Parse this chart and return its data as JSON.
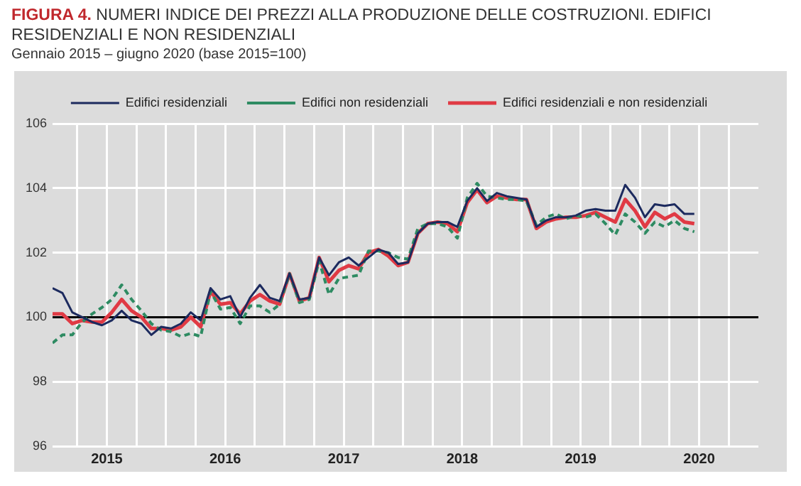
{
  "chart_data": {
    "type": "line",
    "title": "FIGURA 4. NUMERI INDICE DEI PREZZI ALLA PRODUZIONE DELLE COSTRUZIONI. EDIFICI RESIDENZIALI E NON RESIDENZIALI",
    "subtitle": "Gennaio 2015 – giugno 2020 (base 2015=100)",
    "x": [
      "2015-01",
      "2015-02",
      "2015-03",
      "2015-04",
      "2015-05",
      "2015-06",
      "2015-07",
      "2015-08",
      "2015-09",
      "2015-10",
      "2015-11",
      "2015-12",
      "2016-01",
      "2016-02",
      "2016-03",
      "2016-04",
      "2016-05",
      "2016-06",
      "2016-07",
      "2016-08",
      "2016-09",
      "2016-10",
      "2016-11",
      "2016-12",
      "2017-01",
      "2017-02",
      "2017-03",
      "2017-04",
      "2017-05",
      "2017-06",
      "2017-07",
      "2017-08",
      "2017-09",
      "2017-10",
      "2017-11",
      "2017-12",
      "2018-01",
      "2018-02",
      "2018-03",
      "2018-04",
      "2018-05",
      "2018-06",
      "2018-07",
      "2018-08",
      "2018-09",
      "2018-10",
      "2018-11",
      "2018-12",
      "2019-01",
      "2019-02",
      "2019-03",
      "2019-04",
      "2019-05",
      "2019-06",
      "2019-07",
      "2019-08",
      "2019-09",
      "2019-10",
      "2019-11",
      "2019-12",
      "2020-01",
      "2020-02",
      "2020-03",
      "2020-04",
      "2020-05",
      "2020-06"
    ],
    "series": [
      {
        "name": "Edifici residenziali",
        "color": "#1c2a5e",
        "line_style": "solid",
        "values": [
          100.9,
          100.75,
          100.15,
          100.0,
          99.85,
          99.75,
          99.9,
          100.2,
          99.9,
          99.8,
          99.45,
          99.7,
          99.65,
          99.8,
          100.15,
          99.9,
          100.9,
          100.55,
          100.65,
          100.0,
          100.6,
          101.0,
          100.6,
          100.5,
          101.35,
          100.55,
          100.6,
          101.85,
          101.3,
          101.7,
          101.85,
          101.6,
          101.85,
          102.1,
          102.0,
          101.65,
          101.7,
          102.6,
          102.9,
          102.95,
          102.95,
          102.8,
          103.6,
          104.0,
          103.6,
          103.85,
          103.75,
          103.7,
          103.65,
          102.8,
          103.0,
          103.1,
          103.1,
          103.15,
          103.3,
          103.35,
          103.3,
          103.3,
          104.1,
          103.7,
          103.1,
          103.5,
          103.45,
          103.5,
          103.2,
          103.2
        ]
      },
      {
        "name": "Edifici non residenziali",
        "color": "#2e8b62",
        "line_style": "dashed",
        "values": [
          99.2,
          99.45,
          99.45,
          99.85,
          100.1,
          100.3,
          100.55,
          101.0,
          100.55,
          100.2,
          99.8,
          99.6,
          99.55,
          99.4,
          99.5,
          99.4,
          100.8,
          100.25,
          100.3,
          99.8,
          100.35,
          100.35,
          100.15,
          100.4,
          101.35,
          100.45,
          100.55,
          101.75,
          100.7,
          101.2,
          101.25,
          101.3,
          102.05,
          102.05,
          102.0,
          101.85,
          101.8,
          102.75,
          102.9,
          102.9,
          102.8,
          102.45,
          103.7,
          104.15,
          103.75,
          103.7,
          103.65,
          103.65,
          103.6,
          102.85,
          103.1,
          103.2,
          103.05,
          103.15,
          103.1,
          103.2,
          102.9,
          102.55,
          103.2,
          102.95,
          102.6,
          102.95,
          102.8,
          103.0,
          102.75,
          102.65
        ]
      },
      {
        "name": "Edifici residenziali e non residenziali",
        "color": "#e03a44",
        "line_style": "solid",
        "values": [
          100.1,
          100.1,
          99.8,
          99.9,
          99.85,
          99.85,
          100.15,
          100.55,
          100.2,
          100.0,
          99.65,
          99.65,
          99.6,
          99.7,
          100.0,
          99.7,
          100.8,
          100.4,
          100.45,
          100.1,
          100.5,
          100.7,
          100.5,
          100.4,
          101.35,
          100.5,
          100.6,
          101.85,
          101.1,
          101.45,
          101.6,
          101.5,
          102.0,
          102.1,
          101.9,
          101.6,
          101.7,
          102.6,
          102.9,
          102.95,
          102.9,
          102.65,
          103.55,
          103.95,
          103.55,
          103.75,
          103.7,
          103.65,
          103.65,
          102.75,
          102.95,
          103.05,
          103.1,
          103.1,
          103.15,
          103.25,
          103.1,
          102.95,
          103.65,
          103.3,
          102.8,
          103.25,
          103.05,
          103.2,
          102.95,
          102.9
        ]
      }
    ],
    "xlim": [
      "2015-01",
      "2020-12-16"
    ],
    "xticks": [
      {
        "value": "2015-03-16",
        "label": null
      },
      {
        "value": "2015-06-16",
        "label": "2015"
      },
      {
        "value": "2015-09-16",
        "label": null
      },
      {
        "value": "2015-12-16",
        "label": null
      },
      {
        "value": "2016-03-16",
        "label": null
      },
      {
        "value": "2016-06-16",
        "label": "2016"
      },
      {
        "value": "2016-09-16",
        "label": null
      },
      {
        "value": "2016-12-16",
        "label": null
      },
      {
        "value": "2017-03-16",
        "label": null
      },
      {
        "value": "2017-06-16",
        "label": "2017"
      },
      {
        "value": "2017-09-16",
        "label": null
      },
      {
        "value": "2017-12-16",
        "label": null
      },
      {
        "value": "2018-03-16",
        "label": null
      },
      {
        "value": "2018-06-16",
        "label": "2018"
      },
      {
        "value": "2018-09-16",
        "label": null
      },
      {
        "value": "2018-12-16",
        "label": null
      },
      {
        "value": "2019-03-16",
        "label": null
      },
      {
        "value": "2019-06-16",
        "label": "2019"
      },
      {
        "value": "2019-09-16",
        "label": null
      },
      {
        "value": "2019-12-16",
        "label": null
      },
      {
        "value": "2020-03-16",
        "label": null
      },
      {
        "value": "2020-06-16",
        "label": "2020"
      },
      {
        "value": "2020-09-16",
        "label": null
      }
    ],
    "ylim": [
      96,
      106
    ],
    "yticks": [
      96,
      98,
      100,
      102,
      104,
      106
    ],
    "ref_lines": [
      {
        "axis": "y",
        "value": 100,
        "color": "#000000"
      }
    ],
    "grid": true,
    "legend": "top",
    "marker": "none"
  }
}
